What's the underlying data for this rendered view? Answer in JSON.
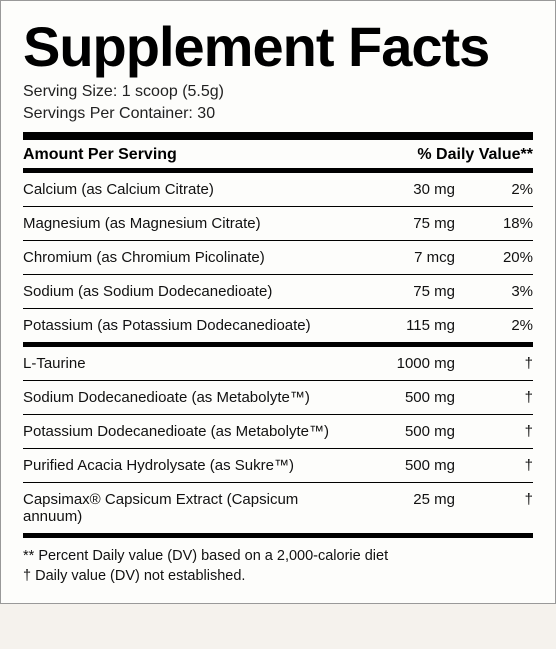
{
  "title": "Supplement Facts",
  "serving_size_label": "Serving Size: 1 scoop (5.5g)",
  "servings_per_container_label": "Servings Per Container: 30",
  "header": {
    "amount_per_serving": "Amount Per Serving",
    "daily_value": "% Daily Value**"
  },
  "section1": [
    {
      "name": "Calcium (as Calcium Citrate)",
      "amount": "30 mg",
      "dv": "2%"
    },
    {
      "name": "Magnesium (as Magnesium Citrate)",
      "amount": "75 mg",
      "dv": "18%"
    },
    {
      "name": "Chromium (as Chromium Picolinate)",
      "amount": "7 mcg",
      "dv": "20%"
    },
    {
      "name": "Sodium (as Sodium Dodecanedioate)",
      "amount": "75 mg",
      "dv": "3%"
    },
    {
      "name": "Potassium (as Potassium Dodecanedioate)",
      "amount": "115 mg",
      "dv": "2%"
    }
  ],
  "section2": [
    {
      "name": "L-Taurine",
      "amount": "1000 mg",
      "dv": "†"
    }
  ],
  "section3": [
    {
      "name": "Sodium Dodecanedioate (as Metabolyte™)",
      "amount": "500 mg",
      "dv": "†"
    },
    {
      "name": "Potassium Dodecanedioate (as Metabolyte™)",
      "amount": "500 mg",
      "dv": "†"
    },
    {
      "name": "Purified Acacia Hydrolysate (as Sukre™)",
      "amount": "500 mg",
      "dv": "†"
    },
    {
      "name": "Capsimax® Capsicum Extract (Capsicum annuum)",
      "amount": "25 mg",
      "dv": "†"
    }
  ],
  "footnote1": "** Percent Daily value (DV) based on a 2,000-calorie diet",
  "footnote2": "† Daily value (DV) not established."
}
